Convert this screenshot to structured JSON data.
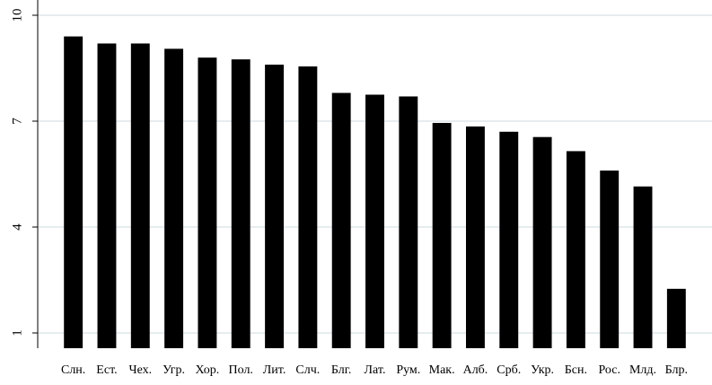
{
  "chart_data": {
    "type": "bar",
    "categories": [
      "Слн.",
      "Ест.",
      "Чех.",
      "Угр.",
      "Хор.",
      "Пол.",
      "Лит.",
      "Слч.",
      "Блг.",
      "Лат.",
      "Рум.",
      "Мак.",
      "Алб.",
      "Срб.",
      "Укр.",
      "Бсн.",
      "Рос.",
      "Млд.",
      "Блр."
    ],
    "values": [
      9.4,
      9.2,
      9.2,
      9.05,
      8.8,
      8.75,
      8.6,
      8.55,
      7.8,
      7.75,
      7.7,
      6.95,
      6.85,
      6.7,
      6.55,
      6.15,
      5.6,
      5.15,
      2.25
    ],
    "yticks": [
      1,
      4,
      7,
      10
    ],
    "ylim": [
      1,
      10
    ],
    "grid": true,
    "bar_color": "#000000",
    "grid_color": "#e6ecef",
    "title": "",
    "xlabel": "",
    "ylabel": ""
  }
}
